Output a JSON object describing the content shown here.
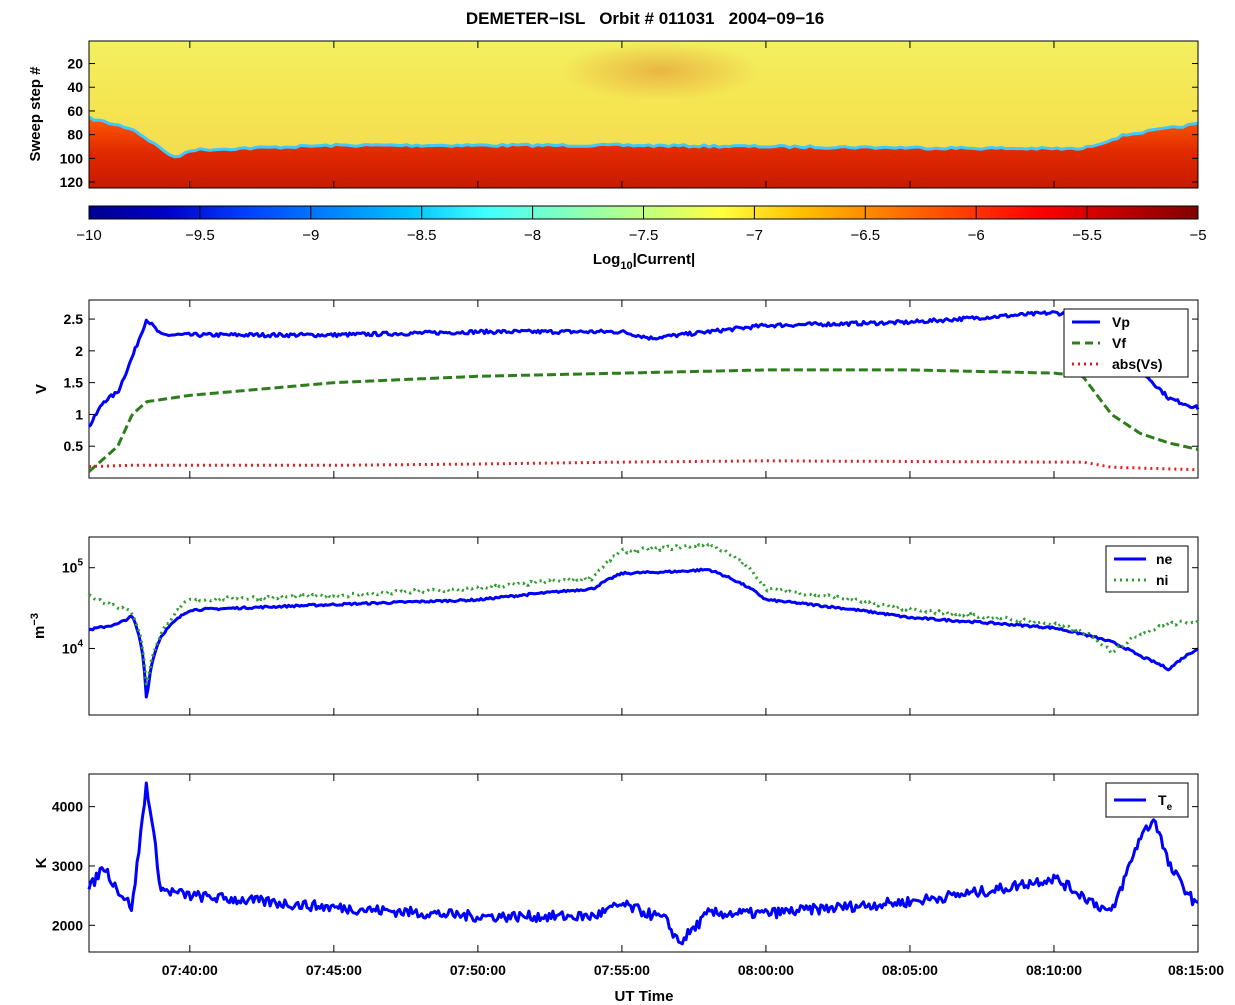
{
  "title": "DEMETER−ISL   Orbit # 011031   2004−09−16",
  "x_axis": {
    "label": "UT Time",
    "start": "07:36:30",
    "end": "08:15:00",
    "tick_labels": [
      "07:40:00",
      "07:45:00",
      "07:50:00",
      "07:55:00",
      "08:00:00",
      "08:05:00",
      "08:10:00",
      "08:15:00"
    ]
  },
  "chart_data": [
    {
      "type": "heatmap",
      "ylabel": "Sweep step #",
      "ylim": [
        125,
        1
      ],
      "y_ticks": [
        20,
        40,
        60,
        80,
        100,
        120
      ],
      "colorbar": {
        "label_main": "Log",
        "label_sub": "10",
        "label_rest": "|Current|",
        "range": [
          -10,
          -5
        ],
        "ticks": [
          "−10",
          "−9.5",
          "−9",
          "−8.5",
          "−8",
          "−7.5",
          "−7",
          "−6.5",
          "−6",
          "−5.5",
          "−5"
        ],
        "colors": [
          "#00008f",
          "#0000c8",
          "#0040ff",
          "#0080ff",
          "#00bfff",
          "#40ffff",
          "#80ffbf",
          "#bfff80",
          "#ffff40",
          "#ffbf00",
          "#ff8000",
          "#ff4000",
          "#ff0000",
          "#c00000",
          "#800000"
        ]
      },
      "boundary_sweep_step": {
        "time": [
          "07:36:30",
          "07:38:00",
          "07:39:30",
          "07:40:00",
          "07:45:00",
          "07:55:00",
          "08:05:00",
          "08:11:00",
          "08:12:30",
          "08:15:00"
        ],
        "step": [
          66,
          75,
          100,
          93,
          89,
          89,
          91,
          92,
          80,
          71
        ]
      },
      "level_above_boundary": -7.1,
      "level_below_boundary": -5.6
    },
    {
      "type": "line",
      "ylabel": "V",
      "ylim": [
        0,
        2.8
      ],
      "y_ticks": [
        "0.5",
        "1",
        "1.5",
        "2",
        "2.5"
      ],
      "legend_position": "top-right",
      "series": [
        {
          "name": "Vp",
          "color": "#0000ff",
          "style": "solid",
          "time": [
            "07:36:30",
            "07:37:00",
            "07:37:30",
            "07:38:00",
            "07:38:30",
            "07:39:00",
            "07:40:00",
            "07:45:00",
            "07:50:00",
            "07:55:00",
            "07:56:00",
            "07:57:00",
            "08:00:00",
            "08:05:00",
            "08:10:00",
            "08:11:00",
            "08:12:00",
            "08:13:00",
            "08:14:00",
            "08:15:00"
          ],
          "values": [
            0.8,
            1.2,
            1.35,
            1.9,
            2.5,
            2.25,
            2.25,
            2.25,
            2.3,
            2.3,
            2.2,
            2.25,
            2.4,
            2.45,
            2.6,
            2.55,
            1.8,
            1.7,
            1.25,
            1.1
          ]
        },
        {
          "name": "Vf",
          "color": "#2e7d1c",
          "style": "dashed",
          "time": [
            "07:36:30",
            "07:37:30",
            "07:38:00",
            "07:38:30",
            "07:40:00",
            "07:45:00",
            "07:50:00",
            "07:55:00",
            "08:00:00",
            "08:05:00",
            "08:10:00",
            "08:11:00",
            "08:12:00",
            "08:13:00",
            "08:14:00",
            "08:15:00"
          ],
          "values": [
            0.1,
            0.5,
            1.0,
            1.2,
            1.3,
            1.5,
            1.6,
            1.65,
            1.7,
            1.7,
            1.65,
            1.6,
            1.0,
            0.7,
            0.55,
            0.45
          ]
        },
        {
          "name": "abs(Vs)",
          "color": "#e02020",
          "style": "dotted",
          "time": [
            "07:36:30",
            "07:38:00",
            "07:45:00",
            "07:50:00",
            "07:55:00",
            "08:00:00",
            "08:05:00",
            "08:10:00",
            "08:11:00",
            "08:12:00",
            "08:15:00"
          ],
          "values": [
            0.18,
            0.2,
            0.2,
            0.22,
            0.25,
            0.27,
            0.26,
            0.25,
            0.25,
            0.17,
            0.13
          ]
        }
      ]
    },
    {
      "type": "line",
      "ylabel_main": "m",
      "ylabel_sup": "−3",
      "log_scale": true,
      "ylim": [
        1500,
        240000
      ],
      "y_ticks": [
        {
          "base": "10",
          "exp": "5",
          "value": 100000
        },
        {
          "base": "10",
          "exp": "4",
          "value": 10000
        }
      ],
      "legend_position": "top-right",
      "series": [
        {
          "name": "ne",
          "color": "#0000ff",
          "style": "solid",
          "time": [
            "07:36:30",
            "07:37:30",
            "07:38:00",
            "07:38:30",
            "07:39:00",
            "07:40:00",
            "07:45:00",
            "07:50:00",
            "07:54:00",
            "07:55:00",
            "07:57:00",
            "07:58:00",
            "08:00:00",
            "08:05:00",
            "08:10:00",
            "08:11:00",
            "08:12:00",
            "08:13:00",
            "08:14:00",
            "08:15:00"
          ],
          "values": [
            17000,
            20000,
            25000,
            2000,
            14000,
            30000,
            35000,
            40000,
            55000,
            85000,
            90000,
            95000,
            40000,
            24000,
            18000,
            15000,
            12000,
            8000,
            5500,
            10000
          ]
        },
        {
          "name": "ni",
          "color": "#2e9d2e",
          "style": "dotted",
          "time": [
            "07:36:30",
            "07:37:00",
            "07:38:00",
            "07:38:30",
            "07:39:00",
            "07:40:00",
            "07:45:00",
            "07:50:00",
            "07:54:00",
            "07:55:00",
            "07:57:00",
            "07:58:00",
            "08:00:00",
            "08:05:00",
            "08:10:00",
            "08:11:00",
            "08:12:00",
            "08:13:00",
            "08:14:00",
            "08:15:00"
          ],
          "values": [
            45000,
            38000,
            28000,
            3000,
            15000,
            40000,
            45000,
            55000,
            75000,
            160000,
            180000,
            200000,
            55000,
            30000,
            20000,
            16000,
            9000,
            15000,
            20000,
            22000
          ]
        }
      ]
    },
    {
      "type": "line",
      "ylabel": "K",
      "ylim": [
        1550,
        4550
      ],
      "y_ticks": [
        "2000",
        "3000",
        "4000"
      ],
      "legend_position": "top-right",
      "series": [
        {
          "name_main": "T",
          "name_sub": "e",
          "color": "#0000ff",
          "style": "solid",
          "time": [
            "07:36:30",
            "07:37:00",
            "07:37:30",
            "07:38:00",
            "07:38:30",
            "07:39:00",
            "07:40:00",
            "07:45:00",
            "07:50:00",
            "07:54:00",
            "07:55:00",
            "07:56:30",
            "07:57:00",
            "07:58:00",
            "08:00:00",
            "08:05:00",
            "08:08:00",
            "08:10:00",
            "08:11:00",
            "08:12:00",
            "08:13:00",
            "08:13:30",
            "08:14:00",
            "08:15:00"
          ],
          "values": [
            2600,
            3000,
            2600,
            2300,
            4400,
            2600,
            2500,
            2300,
            2150,
            2150,
            2350,
            2100,
            1700,
            2200,
            2200,
            2400,
            2600,
            2800,
            2500,
            2200,
            3500,
            3800,
            3000,
            2300
          ]
        }
      ]
    }
  ]
}
